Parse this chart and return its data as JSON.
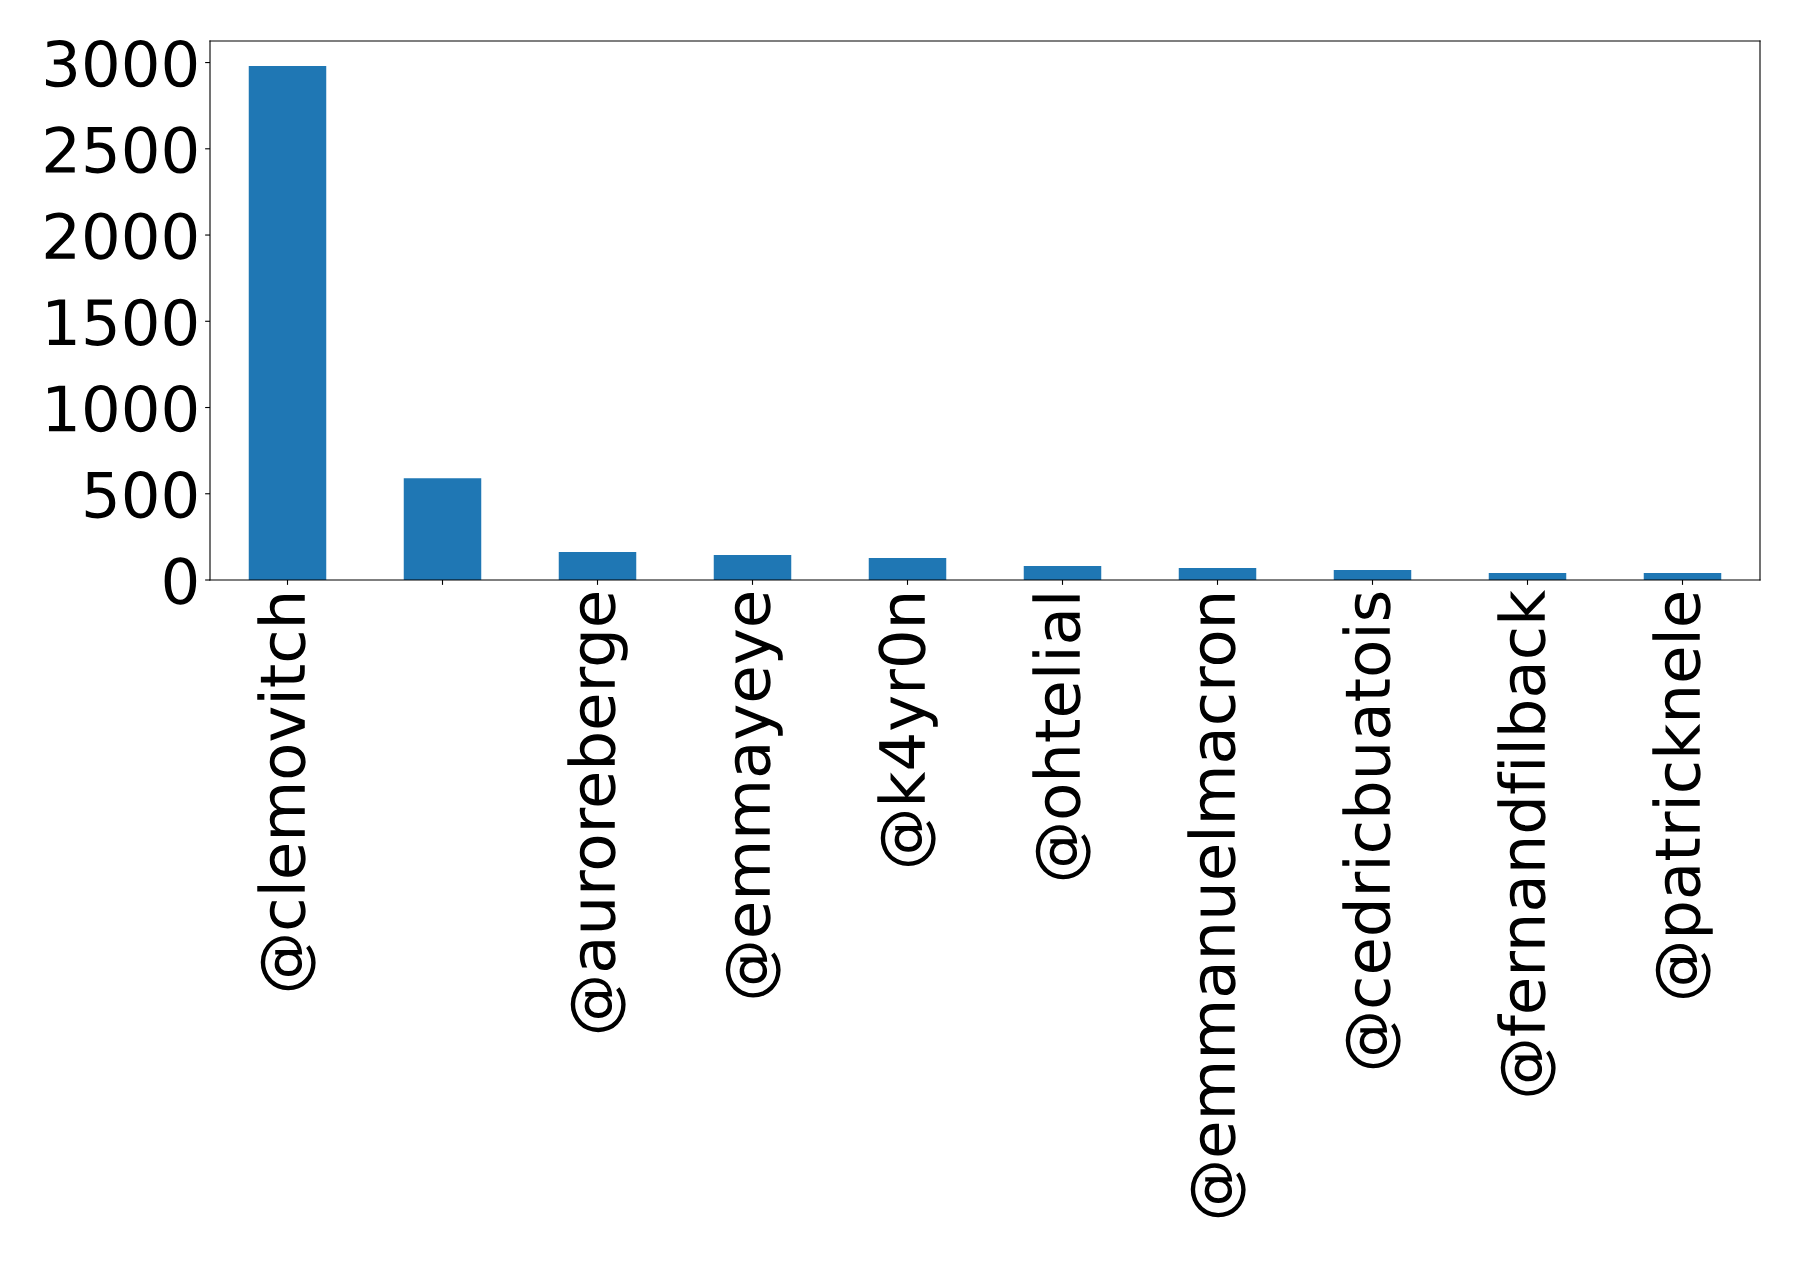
{
  "chart_data": {
    "type": "bar",
    "categories": [
      "@clemovitch",
      null,
      "@auroreberge",
      "@emmayeye",
      "@k4yr0n",
      "@ohtelial",
      "@emmanuelmacron",
      "@cedricbuatois",
      "@fernandfilback",
      "@patricknele"
    ],
    "values": [
      2980,
      590,
      163,
      145,
      128,
      81,
      70,
      58,
      41,
      41
    ],
    "color": "#1f77b4",
    "ylim": [
      0,
      3125
    ],
    "yticks": [
      0,
      500,
      1000,
      1500,
      2000,
      2500,
      3000
    ],
    "grid": false
  }
}
